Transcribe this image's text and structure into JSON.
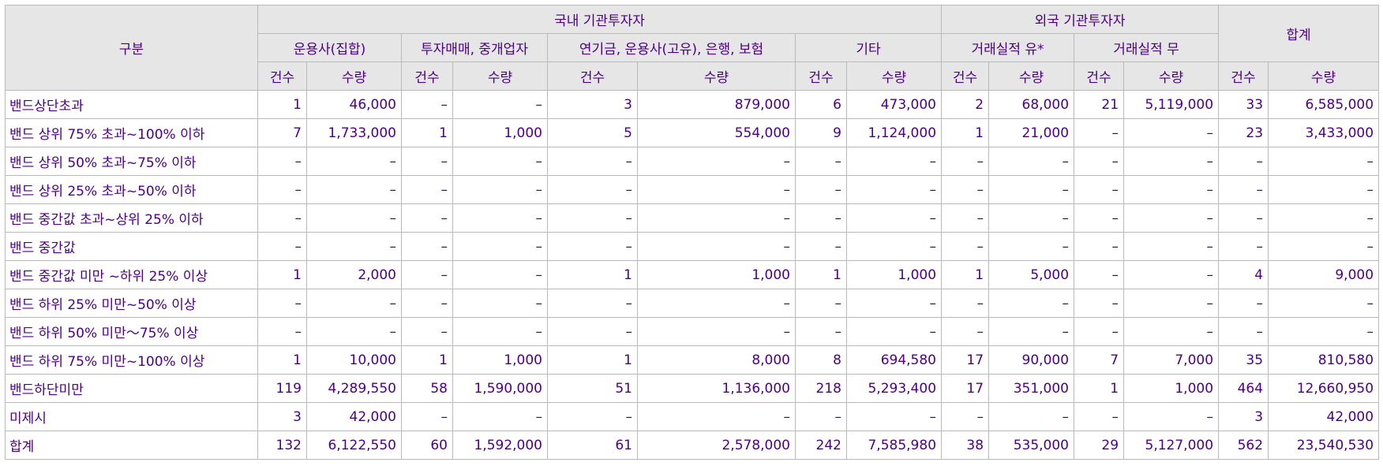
{
  "headers": {
    "category": "구분",
    "domestic": "국내 기관투자자",
    "foreign": "외국 기관투자자",
    "total": "합계",
    "sub": [
      "운용사(집합)",
      "투자매매, 중개업자",
      "연기금, 운용사(고유), 은행, 보험",
      "기타",
      "거래실적 유*",
      "거래실적 무"
    ],
    "count": "건수",
    "qty": "수량"
  },
  "rows": [
    {
      "label": "밴드상단초과",
      "cells": [
        "1",
        "46,000",
        "–",
        "–",
        "3",
        "879,000",
        "6",
        "473,000",
        "2",
        "68,000",
        "21",
        "5,119,000",
        "33",
        "6,585,000"
      ]
    },
    {
      "label": "밴드 상위 75% 초과~100% 이하",
      "cells": [
        "7",
        "1,733,000",
        "1",
        "1,000",
        "5",
        "554,000",
        "9",
        "1,124,000",
        "1",
        "21,000",
        "–",
        "–",
        "23",
        "3,433,000"
      ]
    },
    {
      "label": "밴드 상위 50% 초과~75% 이하",
      "cells": [
        "–",
        "–",
        "–",
        "–",
        "–",
        "–",
        "–",
        "–",
        "–",
        "–",
        "–",
        "–",
        "–",
        "–"
      ]
    },
    {
      "label": "밴드 상위 25% 초과~50% 이하",
      "cells": [
        "–",
        "–",
        "–",
        "–",
        "–",
        "–",
        "–",
        "–",
        "–",
        "–",
        "–",
        "–",
        "–",
        "–"
      ]
    },
    {
      "label": "밴드 중간값 초과~상위 25% 이하",
      "cells": [
        "–",
        "–",
        "–",
        "–",
        "–",
        "–",
        "–",
        "–",
        "–",
        "–",
        "–",
        "–",
        "–",
        "–"
      ]
    },
    {
      "label": "밴드 중간값",
      "cells": [
        "–",
        "–",
        "–",
        "–",
        "–",
        "–",
        "–",
        "–",
        "–",
        "–",
        "–",
        "–",
        "–",
        "–"
      ]
    },
    {
      "label": "밴드 중간값 미만 ~하위 25% 이상",
      "cells": [
        "1",
        "2,000",
        "–",
        "–",
        "1",
        "1,000",
        "1",
        "1,000",
        "1",
        "5,000",
        "–",
        "–",
        "4",
        "9,000"
      ]
    },
    {
      "label": "밴드 하위 25% 미만~50% 이상",
      "cells": [
        "–",
        "–",
        "–",
        "–",
        "–",
        "–",
        "–",
        "–",
        "–",
        "–",
        "–",
        "–",
        "–",
        "–"
      ]
    },
    {
      "label": "밴드 하위 50% 미만～75% 이상",
      "cells": [
        "–",
        "–",
        "–",
        "–",
        "–",
        "–",
        "–",
        "–",
        "–",
        "–",
        "–",
        "–",
        "–",
        "–"
      ]
    },
    {
      "label": "밴드 하위 75% 미만~100% 이상",
      "cells": [
        "1",
        "10,000",
        "1",
        "1,000",
        "1",
        "8,000",
        "8",
        "694,580",
        "17",
        "90,000",
        "7",
        "7,000",
        "35",
        "810,580"
      ]
    },
    {
      "label": "밴드하단미만",
      "cells": [
        "119",
        "4,289,550",
        "58",
        "1,590,000",
        "51",
        "1,136,000",
        "218",
        "5,293,400",
        "17",
        "351,000",
        "1",
        "1,000",
        "464",
        "12,660,950"
      ]
    },
    {
      "label": "미제시",
      "cells": [
        "3",
        "42,000",
        "–",
        "–",
        "–",
        "–",
        "–",
        "–",
        "–",
        "–",
        "–",
        "–",
        "3",
        "42,000"
      ]
    },
    {
      "label": "합계",
      "cells": [
        "132",
        "6,122,550",
        "60",
        "1,592,000",
        "61",
        "2,578,000",
        "242",
        "7,585,980",
        "38",
        "535,000",
        "29",
        "5,127,000",
        "562",
        "23,540,530"
      ]
    }
  ]
}
